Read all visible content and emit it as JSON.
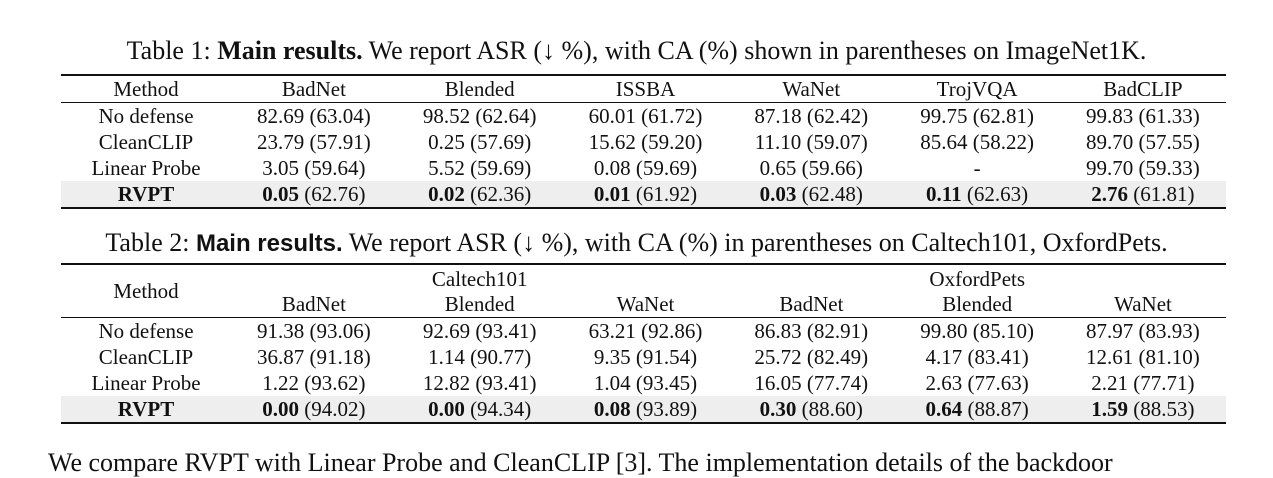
{
  "table1": {
    "caption_label": "Table 1:",
    "caption_bold": "Main results.",
    "caption_text": "We report ASR (↓ %), with CA (%) shown in parentheses on ImageNet1K.",
    "headers": [
      "Method",
      "BadNet",
      "Blended",
      "ISSBA",
      "WaNet",
      "TrojVQA",
      "BadCLIP"
    ],
    "rows": [
      {
        "method": "No defense",
        "cells": [
          {
            "asr": "82.69",
            "ca": "(63.04)"
          },
          {
            "asr": "98.52",
            "ca": "(62.64)"
          },
          {
            "asr": "60.01",
            "ca": "(61.72)"
          },
          {
            "asr": "87.18",
            "ca": "(62.42)"
          },
          {
            "asr": "99.75",
            "ca": "(62.81)"
          },
          {
            "asr": "99.83",
            "ca": "(61.33)"
          }
        ]
      },
      {
        "method": "CleanCLIP",
        "cells": [
          {
            "asr": "23.79",
            "ca": "(57.91)"
          },
          {
            "asr": "0.25",
            "ca": "(57.69)"
          },
          {
            "asr": "15.62",
            "ca": "(59.20)"
          },
          {
            "asr": "11.10",
            "ca": "(59.07)"
          },
          {
            "asr": "85.64",
            "ca": "(58.22)"
          },
          {
            "asr": "89.70",
            "ca": "(57.55)"
          }
        ]
      },
      {
        "method": "Linear Probe",
        "cells": [
          {
            "asr": "3.05",
            "ca": "(59.64)"
          },
          {
            "asr": "5.52",
            "ca": "(59.69)"
          },
          {
            "asr": "0.08",
            "ca": "(59.69)"
          },
          {
            "asr": "0.65",
            "ca": "(59.66)"
          },
          {
            "asr": "-",
            "ca": ""
          },
          {
            "asr": "99.70",
            "ca": "(59.33)"
          }
        ]
      },
      {
        "method": "RVPT",
        "highlight": true,
        "cells": [
          {
            "asr": "0.05",
            "ca": "(62.76)"
          },
          {
            "asr": "0.02",
            "ca": "(62.36)"
          },
          {
            "asr": "0.01",
            "ca": "(61.92)"
          },
          {
            "asr": "0.03",
            "ca": "(62.48)"
          },
          {
            "asr": "0.11",
            "ca": "(62.63)"
          },
          {
            "asr": "2.76",
            "ca": "(61.81)"
          }
        ]
      }
    ]
  },
  "table2": {
    "caption_label": "Table 2:",
    "caption_bold": "Main results.",
    "caption_text": "We report ASR (↓ %), with CA (%) in parentheses on Caltech101, OxfordPets.",
    "method_header": "Method",
    "groups": [
      {
        "name": "Caltech101",
        "subs": [
          "BadNet",
          "Blended",
          "WaNet"
        ]
      },
      {
        "name": "OxfordPets",
        "subs": [
          "BadNet",
          "Blended",
          "WaNet"
        ]
      }
    ],
    "rows": [
      {
        "method": "No defense",
        "cells": [
          {
            "asr": "91.38",
            "ca": "(93.06)"
          },
          {
            "asr": "92.69",
            "ca": "(93.41)"
          },
          {
            "asr": "63.21",
            "ca": "(92.86)"
          },
          {
            "asr": "86.83",
            "ca": "(82.91)"
          },
          {
            "asr": "99.80",
            "ca": "(85.10)"
          },
          {
            "asr": "87.97",
            "ca": "(83.93)"
          }
        ]
      },
      {
        "method": "CleanCLIP",
        "cells": [
          {
            "asr": "36.87",
            "ca": "(91.18)"
          },
          {
            "asr": "1.14",
            "ca": "(90.77)"
          },
          {
            "asr": "9.35",
            "ca": "(91.54)"
          },
          {
            "asr": "25.72",
            "ca": "(82.49)"
          },
          {
            "asr": "4.17",
            "ca": "(83.41)"
          },
          {
            "asr": "12.61",
            "ca": "(81.10)"
          }
        ]
      },
      {
        "method": "Linear Probe",
        "cells": [
          {
            "asr": "1.22",
            "ca": "(93.62)"
          },
          {
            "asr": "12.82",
            "ca": "(93.41)"
          },
          {
            "asr": "1.04",
            "ca": "(93.45)"
          },
          {
            "asr": "16.05",
            "ca": "(77.74)"
          },
          {
            "asr": "2.63",
            "ca": "(77.63)"
          },
          {
            "asr": "2.21",
            "ca": "(77.71)"
          }
        ]
      },
      {
        "method": "RVPT",
        "highlight": true,
        "cells": [
          {
            "asr": "0.00",
            "ca": "(94.02)"
          },
          {
            "asr": "0.00",
            "ca": "(94.34)"
          },
          {
            "asr": "0.08",
            "ca": "(93.89)"
          },
          {
            "asr": "0.30",
            "ca": "(88.60)"
          },
          {
            "asr": "0.64",
            "ca": "(88.87)"
          },
          {
            "asr": "1.59",
            "ca": "(88.53)"
          }
        ]
      }
    ]
  },
  "body_text_cut": "We compare RVPT with Linear Probe and CleanCLIP [3]. The implementation details of the backdoor"
}
